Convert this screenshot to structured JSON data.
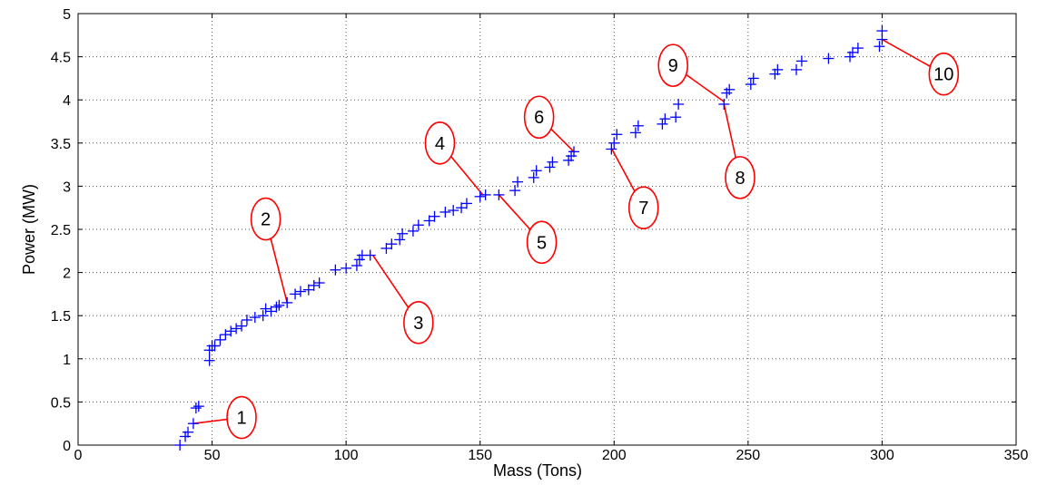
{
  "chart_data": {
    "type": "scatter",
    "title": "",
    "xlabel": "Mass (Tons)",
    "ylabel": "Power (MW)",
    "xlim": [
      0,
      350
    ],
    "ylim": [
      0,
      5
    ],
    "xticks": [
      0,
      50,
      100,
      150,
      200,
      250,
      300,
      350
    ],
    "yticks": [
      0,
      0.5,
      1,
      1.5,
      2,
      2.5,
      3,
      3.5,
      4,
      4.5,
      5
    ],
    "grid": true,
    "marker": "+",
    "marker_color": "#0000ff",
    "annotation_color": "#ff0000",
    "points": [
      [
        38,
        0.0
      ],
      [
        40,
        0.1
      ],
      [
        41,
        0.15
      ],
      [
        43,
        0.25
      ],
      [
        44,
        0.43
      ],
      [
        45,
        0.45
      ],
      [
        49,
        0.98
      ],
      [
        49,
        1.1
      ],
      [
        50,
        1.15
      ],
      [
        51,
        1.15
      ],
      [
        53,
        1.22
      ],
      [
        55,
        1.28
      ],
      [
        57,
        1.32
      ],
      [
        59,
        1.35
      ],
      [
        61,
        1.38
      ],
      [
        63,
        1.45
      ],
      [
        66,
        1.48
      ],
      [
        69,
        1.5
      ],
      [
        70,
        1.58
      ],
      [
        72,
        1.55
      ],
      [
        74,
        1.6
      ],
      [
        75,
        1.62
      ],
      [
        78,
        1.65
      ],
      [
        81,
        1.75
      ],
      [
        83,
        1.78
      ],
      [
        86,
        1.8
      ],
      [
        88,
        1.85
      ],
      [
        90,
        1.88
      ],
      [
        96,
        2.03
      ],
      [
        100,
        2.05
      ],
      [
        104,
        2.08
      ],
      [
        105,
        2.15
      ],
      [
        106,
        2.2
      ],
      [
        109,
        2.2
      ],
      [
        115,
        2.28
      ],
      [
        117,
        2.33
      ],
      [
        120,
        2.38
      ],
      [
        121,
        2.45
      ],
      [
        125,
        2.48
      ],
      [
        127,
        2.55
      ],
      [
        131,
        2.6
      ],
      [
        133,
        2.65
      ],
      [
        137,
        2.7
      ],
      [
        140,
        2.72
      ],
      [
        143,
        2.75
      ],
      [
        145,
        2.8
      ],
      [
        150,
        2.88
      ],
      [
        152,
        2.9
      ],
      [
        157,
        2.9
      ],
      [
        163,
        2.95
      ],
      [
        164,
        3.05
      ],
      [
        170,
        3.1
      ],
      [
        171,
        3.18
      ],
      [
        176,
        3.22
      ],
      [
        177,
        3.28
      ],
      [
        183,
        3.3
      ],
      [
        184,
        3.35
      ],
      [
        185,
        3.4
      ],
      [
        199,
        3.43
      ],
      [
        200,
        3.5
      ],
      [
        201,
        3.6
      ],
      [
        208,
        3.62
      ],
      [
        209,
        3.7
      ],
      [
        218,
        3.72
      ],
      [
        219,
        3.78
      ],
      [
        223,
        3.8
      ],
      [
        224,
        3.95
      ],
      [
        241,
        3.95
      ],
      [
        242,
        4.08
      ],
      [
        243,
        4.12
      ],
      [
        251,
        4.18
      ],
      [
        252,
        4.25
      ],
      [
        260,
        4.3
      ],
      [
        261,
        4.35
      ],
      [
        268,
        4.35
      ],
      [
        270,
        4.45
      ],
      [
        280,
        4.48
      ],
      [
        288,
        4.5
      ],
      [
        289,
        4.55
      ],
      [
        291,
        4.6
      ],
      [
        299,
        4.62
      ],
      [
        300,
        4.7
      ],
      [
        300,
        4.8
      ]
    ],
    "callouts": [
      {
        "label": "1",
        "point": [
          43,
          0.25
        ],
        "label_at": [
          61,
          0.32
        ]
      },
      {
        "label": "2",
        "point": [
          78,
          1.65
        ],
        "label_at": [
          70,
          2.62
        ]
      },
      {
        "label": "3",
        "point": [
          110,
          2.2
        ],
        "label_at": [
          127,
          1.42
        ]
      },
      {
        "label": "4",
        "point": [
          151,
          2.9
        ],
        "label_at": [
          135,
          3.5
        ]
      },
      {
        "label": "5",
        "point": [
          157,
          2.9
        ],
        "label_at": [
          173,
          2.35
        ]
      },
      {
        "label": "6",
        "point": [
          185,
          3.4
        ],
        "label_at": [
          172,
          3.8
        ]
      },
      {
        "label": "7",
        "point": [
          199,
          3.44
        ],
        "label_at": [
          211,
          2.75
        ]
      },
      {
        "label": "8",
        "point": [
          241,
          3.95
        ],
        "label_at": [
          247,
          3.1
        ]
      },
      {
        "label": "9",
        "point": [
          241,
          3.98
        ],
        "label_at": [
          222,
          4.4
        ]
      },
      {
        "label": "10",
        "point": [
          300,
          4.7
        ],
        "label_at": [
          323,
          4.3
        ]
      }
    ]
  }
}
